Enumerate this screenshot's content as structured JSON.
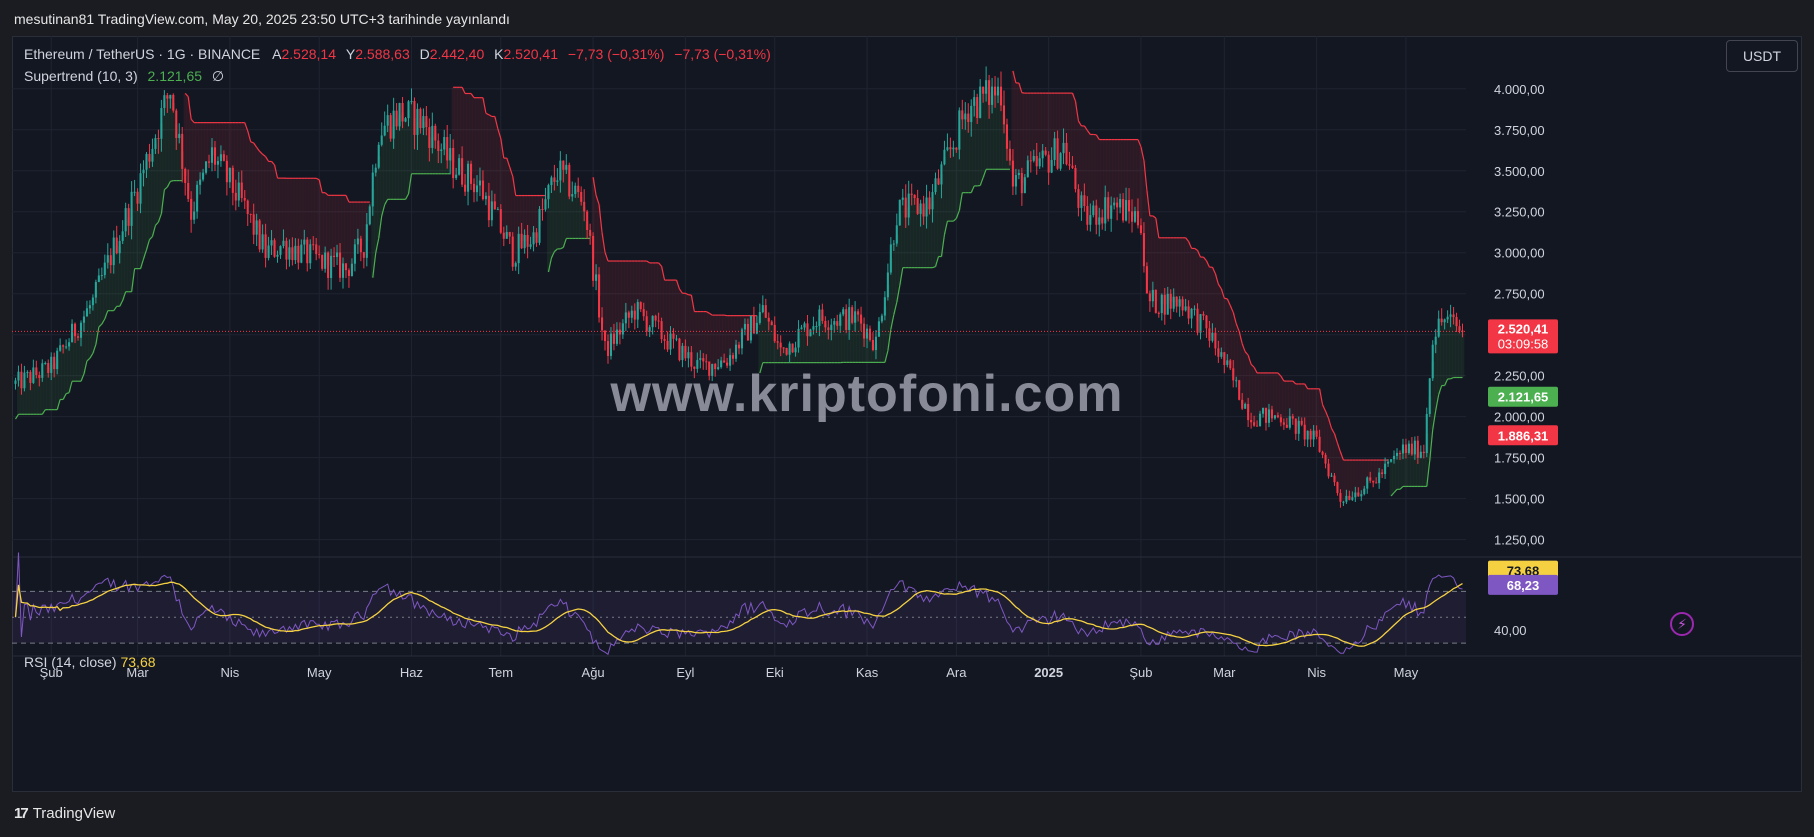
{
  "header": {
    "published": "mesutinan81 TradingView.com, May 20, 2025 23:50 UTC+3 tarihinde yayınlandı"
  },
  "legend": {
    "symbol": "Ethereum / TetherUS · 1G · BINANCE",
    "open_label": "A",
    "open": "2.528,14",
    "high_label": "Y",
    "high": "2.588,63",
    "low_label": "D",
    "low": "2.442,40",
    "close_label": "K",
    "close": "2.520,41",
    "change": "−7,73 (−0,31%)",
    "change2": "−7,73 (−0,31%)",
    "indicator": "Supertrend (10, 3)",
    "indicator_value": "2.121,65",
    "indicator_suffix": "∅"
  },
  "currency_button": "USDT",
  "watermark": "www.kriptofoni.com",
  "rsi": {
    "label": "RSI (14, close)",
    "value": "73,68"
  },
  "footer": {
    "brand": "TradingView"
  },
  "colors": {
    "up": "#26a69a",
    "down": "#f23645",
    "supertrend_up": "#4caf50",
    "supertrend_down": "#f23645",
    "rsi": "#7e57c2",
    "rsi_ma": "#f5d142",
    "background": "#131722"
  },
  "chart_data": [
    {
      "type": "candlestick",
      "symbol": "ETH/USDT",
      "timeframe": "1G",
      "ylim": [
        1150,
        4200
      ],
      "y_ticks": [
        "1.250,00",
        "1.500,00",
        "1.750,00",
        "2.000,00",
        "2.250,00",
        "2.500,00",
        "2.750,00",
        "3.000,00",
        "3.250,00",
        "3.500,00",
        "3.750,00",
        "4.000,00"
      ],
      "x_ticks": [
        "Şub",
        "Mar",
        "Nis",
        "May",
        "Haz",
        "Tem",
        "Ağu",
        "Eyl",
        "Eki",
        "Kas",
        "Ara",
        "2025",
        "Şub",
        "Mar",
        "Nis",
        "May"
      ],
      "price_anchors": [
        [
          "2024-01-20",
          2200
        ],
        [
          "2024-02-01",
          2300
        ],
        [
          "2024-02-15",
          2700
        ],
        [
          "2024-03-01",
          3400
        ],
        [
          "2024-03-12",
          4000
        ],
        [
          "2024-03-19",
          3250
        ],
        [
          "2024-03-26",
          3600
        ],
        [
          "2024-04-05",
          3300
        ],
        [
          "2024-04-13",
          3000
        ],
        [
          "2024-04-19",
          3050
        ],
        [
          "2024-05-01",
          2950
        ],
        [
          "2024-05-10",
          2900
        ],
        [
          "2024-05-16",
          3050
        ],
        [
          "2024-05-21",
          3750
        ],
        [
          "2024-05-28",
          3850
        ],
        [
          "2024-06-05",
          3800
        ],
        [
          "2024-06-14",
          3550
        ],
        [
          "2024-06-24",
          3400
        ],
        [
          "2024-07-05",
          3000
        ],
        [
          "2024-07-12",
          3100
        ],
        [
          "2024-07-20",
          3500
        ],
        [
          "2024-07-29",
          3300
        ],
        [
          "2024-08-05",
          2400
        ],
        [
          "2024-08-15",
          2650
        ],
        [
          "2024-08-27",
          2450
        ],
        [
          "2024-09-06",
          2300
        ],
        [
          "2024-09-15",
          2350
        ],
        [
          "2024-09-27",
          2650
        ],
        [
          "2024-10-03",
          2400
        ],
        [
          "2024-10-15",
          2600
        ],
        [
          "2024-10-29",
          2600
        ],
        [
          "2024-11-04",
          2450
        ],
        [
          "2024-11-11",
          3250
        ],
        [
          "2024-11-22",
          3300
        ],
        [
          "2024-12-05",
          3900
        ],
        [
          "2024-12-16",
          4000
        ],
        [
          "2024-12-20",
          3400
        ],
        [
          "2025-01-06",
          3650
        ],
        [
          "2025-01-13",
          3200
        ],
        [
          "2025-01-22",
          3300
        ],
        [
          "2025-02-01",
          3200
        ],
        [
          "2025-02-03",
          2700
        ],
        [
          "2025-02-15",
          2700
        ],
        [
          "2025-02-24",
          2500
        ],
        [
          "2025-03-10",
          2000
        ],
        [
          "2025-03-20",
          2000
        ],
        [
          "2025-04-01",
          1850
        ],
        [
          "2025-04-09",
          1500
        ],
        [
          "2025-04-20",
          1600
        ],
        [
          "2025-04-30",
          1800
        ],
        [
          "2025-05-07",
          1800
        ],
        [
          "2025-05-10",
          2500
        ],
        [
          "2025-05-14",
          2600
        ],
        [
          "2025-05-20",
          2520
        ]
      ],
      "last_price": "2.520,41",
      "last_price_countdown": "03:09:58",
      "supertrend_label": "2.121,65",
      "supertrend_down_label": "1.886,31"
    },
    {
      "type": "line",
      "name": "RSI (14, close)",
      "ylim": [
        20,
        95
      ],
      "levels": [
        70,
        50,
        30
      ],
      "y_ticks": [
        "40,00"
      ],
      "last_value": "73,68",
      "ma_value": "68,23"
    }
  ]
}
